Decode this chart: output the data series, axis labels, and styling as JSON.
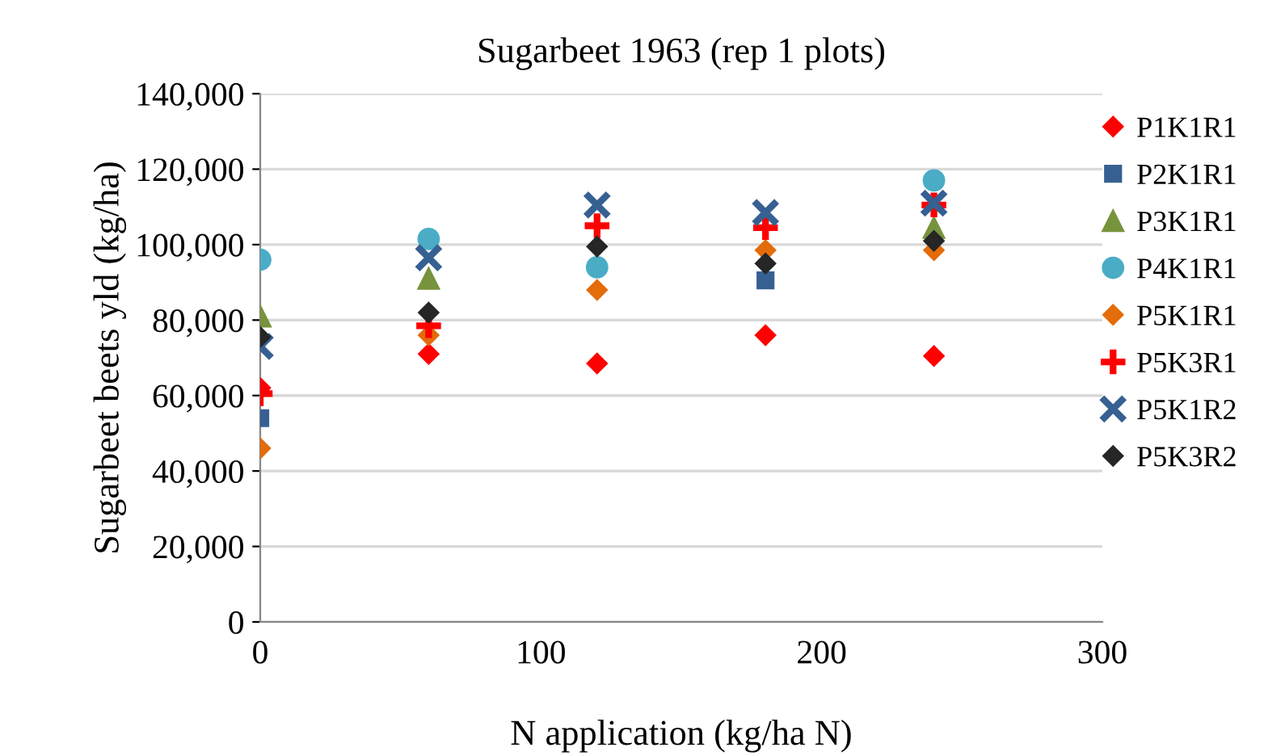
{
  "chart_data": {
    "type": "scatter",
    "title": "Sugarbeet 1963 (rep 1 plots)",
    "xlabel": "N application (kg/ha N)",
    "ylabel": "Sugarbeet beets yld (kg/ha)",
    "x": [
      0,
      60,
      120,
      180,
      240
    ],
    "series": [
      {
        "name": "P1K1R1",
        "color": "#ff0000",
        "marker": "diamond",
        "values": [
          62000,
          71000,
          68500,
          76000,
          70500
        ]
      },
      {
        "name": "P2K1R1",
        "color": "#376092",
        "marker": "square",
        "values": [
          54000,
          null,
          null,
          90500,
          null
        ]
      },
      {
        "name": "P3K1R1",
        "color": "#77933c",
        "marker": "triangle",
        "values": [
          81000,
          91000,
          null,
          null,
          104500
        ]
      },
      {
        "name": "P4K1R1",
        "color": "#4bacc6",
        "marker": "circle",
        "values": [
          96000,
          101500,
          94000,
          null,
          117000
        ]
      },
      {
        "name": "P5K1R1",
        "color": "#e46c0a",
        "marker": "diamond",
        "values": [
          46000,
          76000,
          88000,
          98500,
          98500
        ]
      },
      {
        "name": "P5K3R1",
        "color": "#ff0000",
        "marker": "plus",
        "values": [
          60500,
          78500,
          105000,
          104500,
          110500
        ]
      },
      {
        "name": "P5K1R2",
        "color": "#376092",
        "marker": "cross",
        "values": [
          73000,
          96500,
          110500,
          108500,
          111000
        ]
      },
      {
        "name": "P5K3R2",
        "color": "#262626",
        "marker": "diamond",
        "values": [
          75500,
          82000,
          99500,
          95000,
          101000
        ]
      }
    ],
    "xlim": [
      0,
      300
    ],
    "xticks": [
      0,
      100,
      200,
      300
    ],
    "ylim": [
      0,
      140000
    ],
    "yticks": [
      {
        "value": 0,
        "label": "0"
      },
      {
        "value": 20000,
        "label": "20,000"
      },
      {
        "value": 40000,
        "label": "40,000"
      },
      {
        "value": 60000,
        "label": "60,000"
      },
      {
        "value": 80000,
        "label": "80,000"
      },
      {
        "value": 100000,
        "label": "100,000"
      },
      {
        "value": 120000,
        "label": "120,000"
      },
      {
        "value": 140000,
        "label": "140,000"
      }
    ],
    "grid": "y",
    "legend": "right"
  }
}
